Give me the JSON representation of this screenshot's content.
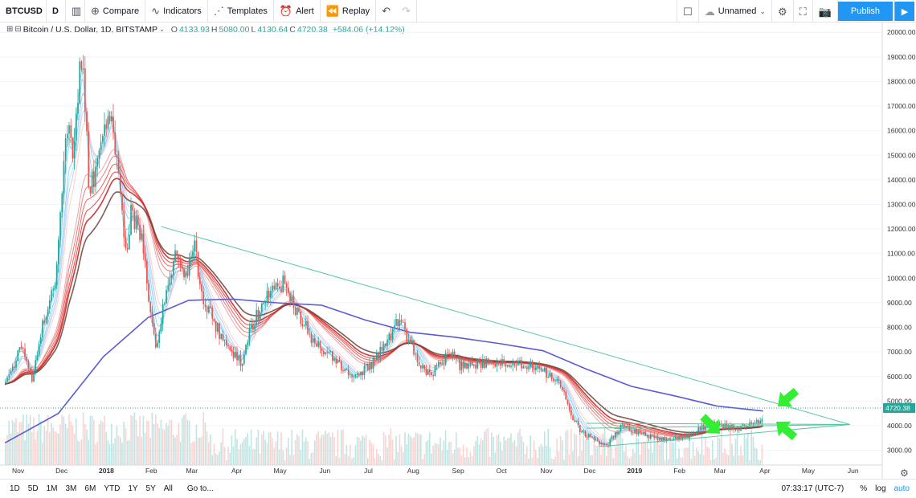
{
  "toolbar": {
    "symbol": "BTCUSD",
    "interval": "D",
    "compare": "Compare",
    "indicators": "Indicators",
    "templates": "Templates",
    "alert": "Alert",
    "replay": "Replay",
    "layout_name": "Unnamed",
    "publish": "Publish"
  },
  "legend": {
    "title": "Bitcoin / U.S. Dollar, 1D, BITSTAMP",
    "open_k": "O",
    "open": "4133.93",
    "high_k": "H",
    "high": "5080.00",
    "low_k": "L",
    "low": "4130.64",
    "close_k": "C",
    "close": "4720.38",
    "change": "+584.06 (+14.12%)"
  },
  "bottom": {
    "ranges": [
      "1D",
      "5D",
      "1M",
      "3M",
      "6M",
      "YTD",
      "1Y",
      "5Y",
      "All"
    ],
    "goto": "Go to...",
    "time": "07:33:17 (UTC-7)",
    "pct": "%",
    "log": "log",
    "auto": "auto"
  },
  "colors": {
    "up": "#26a69a",
    "down": "#ef5350",
    "ma200": "#5b5bd6",
    "trendline": "#55c8a0",
    "arrow": "#33ee33",
    "price_label": "#26a69a"
  },
  "chart_data": {
    "type": "candlestick",
    "symbol": "BTCUSD",
    "ylim": [
      2400,
      20400
    ],
    "y_ticks": [
      3000,
      4000,
      5000,
      6000,
      7000,
      8000,
      9000,
      10000,
      11000,
      12000,
      13000,
      14000,
      15000,
      16000,
      17000,
      18000,
      19000,
      20000
    ],
    "y_tick_labels": [
      "3000.00",
      "4000.00",
      "5000.00",
      "6000.00",
      "7000.00",
      "8000.00",
      "9000.00",
      "10000.00",
      "11000.00",
      "12000.00",
      "13000.00",
      "14000.00",
      "15000.00",
      "16000.00",
      "17000.00",
      "18000.00",
      "19000.00",
      "20000.00"
    ],
    "x_labels": [
      "Nov",
      "Dec",
      "2018",
      "Feb",
      "Mar",
      "Apr",
      "May",
      "Jun",
      "Jul",
      "Aug",
      "Sep",
      "Oct",
      "Nov",
      "Dec",
      "2019",
      "Feb",
      "Mar",
      "Apr",
      "May",
      "Jun"
    ],
    "last_price": 4720.38,
    "last_price_label": "4720.38",
    "series": [
      {
        "name": "",
        "type": "price",
        "points": [
          [
            "2017-10-25",
            5700
          ],
          [
            "2017-11-05",
            7300
          ],
          [
            "2017-11-12",
            5900
          ],
          [
            "2017-11-20",
            8200
          ],
          [
            "2017-11-29",
            9900
          ],
          [
            "2017-12-07",
            16500
          ],
          [
            "2017-12-10",
            15000
          ],
          [
            "2017-12-17",
            19200
          ],
          [
            "2017-12-22",
            13500
          ],
          [
            "2017-12-28",
            14800
          ],
          [
            "2018-01-06",
            17100
          ],
          [
            "2018-01-10",
            14500
          ],
          [
            "2018-01-16",
            11000
          ],
          [
            "2018-01-20",
            12800
          ],
          [
            "2018-01-28",
            11400
          ],
          [
            "2018-02-01",
            9200
          ],
          [
            "2018-02-06",
            6900
          ],
          [
            "2018-02-10",
            8500
          ],
          [
            "2018-02-20",
            11200
          ],
          [
            "2018-02-26",
            9900
          ],
          [
            "2018-03-04",
            11400
          ],
          [
            "2018-03-10",
            9300
          ],
          [
            "2018-03-18",
            8200
          ],
          [
            "2018-03-30",
            6900
          ],
          [
            "2018-04-06",
            6600
          ],
          [
            "2018-04-12",
            7900
          ],
          [
            "2018-04-24",
            9300
          ],
          [
            "2018-05-05",
            9800
          ],
          [
            "2018-05-15",
            8500
          ],
          [
            "2018-05-28",
            7300
          ],
          [
            "2018-06-10",
            6700
          ],
          [
            "2018-06-24",
            5900
          ],
          [
            "2018-07-08",
            6700
          ],
          [
            "2018-07-24",
            8300
          ],
          [
            "2018-08-10",
            6300
          ],
          [
            "2018-08-14",
            6000
          ],
          [
            "2018-08-28",
            7000
          ],
          [
            "2018-09-05",
            6400
          ],
          [
            "2018-09-20",
            6500
          ],
          [
            "2018-10-10",
            6600
          ],
          [
            "2018-10-30",
            6300
          ],
          [
            "2018-11-14",
            5600
          ],
          [
            "2018-11-20",
            4500
          ],
          [
            "2018-11-25",
            3900
          ],
          [
            "2018-12-06",
            3400
          ],
          [
            "2018-12-15",
            3200
          ],
          [
            "2018-12-24",
            4000
          ],
          [
            "2019-01-10",
            3600
          ],
          [
            "2019-01-28",
            3400
          ],
          [
            "2019-02-08",
            3600
          ],
          [
            "2019-02-24",
            4100
          ],
          [
            "2019-03-15",
            3900
          ],
          [
            "2019-03-31",
            4130
          ],
          [
            "2019-04-02",
            4720
          ]
        ]
      },
      {
        "name": "",
        "type": "line",
        "points": [
          [
            "2017-10-25",
            3300
          ],
          [
            "2017-12-01",
            4500
          ],
          [
            "2018-01-01",
            6800
          ],
          [
            "2018-02-01",
            8400
          ],
          [
            "2018-03-01",
            9100
          ],
          [
            "2018-04-01",
            9150
          ],
          [
            "2018-05-01",
            9000
          ],
          [
            "2018-06-01",
            8900
          ],
          [
            "2018-07-01",
            8300
          ],
          [
            "2018-08-01",
            7800
          ],
          [
            "2018-09-01",
            7600
          ],
          [
            "2018-10-01",
            7350
          ],
          [
            "2018-11-01",
            7050
          ],
          [
            "2018-12-01",
            6300
          ],
          [
            "2019-01-01",
            5600
          ],
          [
            "2019-02-01",
            5200
          ],
          [
            "2019-03-01",
            4800
          ],
          [
            "2019-04-02",
            4600
          ]
        ]
      }
    ],
    "trendlines": [
      {
        "from": [
          "2018-02-10",
          12100
        ],
        "to": [
          "2019-06-01",
          4050
        ]
      },
      {
        "from": [
          "2018-12-10",
          3150
        ],
        "to": [
          "2019-06-01",
          4050
        ]
      },
      {
        "from": [
          "2018-12-01",
          4100
        ],
        "to": [
          "2019-06-01",
          4050
        ]
      },
      {
        "from": [
          "2018-12-01",
          3900
        ],
        "to": [
          "2019-06-01",
          4050
        ]
      }
    ]
  }
}
